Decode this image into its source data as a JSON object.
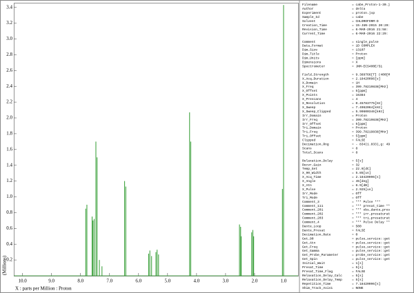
{
  "chart_data": {
    "type": "stem",
    "xlabel": "X : parts per Million : Proton",
    "ylabel": "(Millions)",
    "xlim": [
      10.3,
      0.5
    ],
    "xticks": [
      {
        "value": 10,
        "label": "10.0"
      },
      {
        "value": 9,
        "label": "9.0"
      },
      {
        "value": 8,
        "label": "8.0"
      },
      {
        "value": 7,
        "label": "7.0"
      },
      {
        "value": 6,
        "label": "6.0"
      },
      {
        "value": 5,
        "label": "5.0"
      },
      {
        "value": 4,
        "label": "4.0"
      },
      {
        "value": 3,
        "label": "3.0"
      },
      {
        "value": 2,
        "label": "2.0"
      },
      {
        "value": 1,
        "label": "1.0"
      }
    ],
    "ylim": [
      0,
      3.45
    ],
    "yticks": [
      0.2,
      0.4,
      0.6,
      0.8,
      {
        "value": 1,
        "label": "1.0"
      },
      1.2,
      1.4,
      1.6,
      1.8,
      {
        "value": 2,
        "label": "2.0"
      },
      2.2,
      2.4,
      2.6,
      2.8,
      {
        "value": 3,
        "label": "3.0"
      },
      3.2,
      3.4
    ],
    "color": "#2e9a2e",
    "x": [
      7.82,
      7.78,
      7.6,
      7.57,
      7.53,
      7.47,
      7.43,
      7.35,
      7.26,
      6.48,
      6.44,
      5.65,
      5.61,
      5.55,
      5.4,
      5.36,
      5.31,
      4.24,
      4.2,
      2.52,
      2.48,
      2.46,
      2.1,
      2.06,
      2.03,
      1.04,
      1.0
    ],
    "values": [
      0.85,
      0.9,
      0.75,
      0.7,
      0.72,
      1.7,
      1.5,
      0.2,
      0.12,
      1.2,
      1.13,
      0.28,
      0.32,
      0.25,
      0.3,
      0.33,
      0.27,
      2.07,
      1.7,
      0.65,
      0.62,
      0.5,
      0.55,
      0.58,
      0.5,
      1.1,
      3.43
    ]
  },
  "parameters": [
    [
      [
        "Filename",
        "= cabe_Proton-1-30.j"
      ],
      [
        "Author",
        "= delta"
      ],
      [
        "Experiment",
        "= proton.jxp"
      ],
      [
        "Sample_Id",
        "= cabe"
      ],
      [
        "Solvent",
        "= CHLOROFORM-D"
      ],
      [
        "Creation_Time",
        "= 15-JUN-2015 20:29:"
      ],
      [
        "Revision_Time",
        "= 6-MAR-2016 21:58:"
      ],
      [
        "Current_Time",
        "= 6-MAR-2016 22:29:"
      ]
    ],
    [
      [
        "Comment",
        "= single_pulse"
      ],
      [
        "Data_Format",
        "= 1D COMPLEX"
      ],
      [
        "Dim_Size",
        "= 13107"
      ],
      [
        "Dim_Title",
        "= Proton"
      ],
      [
        "Dim_Units",
        "= [ppm]"
      ],
      [
        "Dimensions",
        "= X"
      ],
      [
        "Spectrometer",
        "= JNM-ECS400E/S1"
      ]
    ],
    [
      [
        "Field_Strength",
        "= 9.389766[T] (400[M"
      ],
      [
        "X_Acq_Duration",
        "= 2.18420096[s]"
      ],
      [
        "X_Domain",
        "= 1H"
      ],
      [
        "X_Freq",
        "= 399.78219838[MHz]"
      ],
      [
        "X_Offset",
        "= 5[ppm]"
      ],
      [
        "X_Points",
        "= 16384"
      ],
      [
        "X_Prescans",
        "= 4"
      ],
      [
        "X_Resolution",
        "= 0.45783775[Hz]"
      ],
      [
        "X_Sweep",
        "= 7.4962064[kHz]"
      ],
      [
        "X_Sweep_Clipped",
        "= 5.99600346[kHz]"
      ],
      [
        "Irr_Domain",
        "= Proton"
      ],
      [
        "Irr_Freq",
        "= 399.78219838[MHz]"
      ],
      [
        "Irr_Offset",
        "= 5[ppm]"
      ],
      [
        "Tri_Domain",
        "= Proton"
      ],
      [
        "Tri_Freq",
        "= 399.78219838[MHz]"
      ],
      [
        "Tri_Offset",
        "= 5[ppm]"
      ],
      [
        "Clipped",
        "= FALSE"
      ],
      [
        "Decimation_Rng",
        "= - 834(1.833),g: 49"
      ],
      [
        "Scans",
        "= 8"
      ],
      [
        "Total_Scans",
        "= 8"
      ]
    ],
    [
      [
        "Relaxation_Delay",
        "= 5[s]"
      ],
      [
        "Recvr_Gain",
        "= 32"
      ],
      [
        "Temp_Get",
        "= 22.9[dC]"
      ],
      [
        "X_90_Width",
        "= 5.85[us]"
      ],
      [
        "X_Acq_Time",
        "= 2.18420096[s]"
      ],
      [
        "X_Angle",
        "= 45[deg]"
      ],
      [
        "X_Atn",
        "= 6.9[dB]"
      ],
      [
        "X_Pulse",
        "= 2.925[us]"
      ],
      [
        "Irr_Mode",
        "= Off"
      ],
      [
        "Tri_Mode",
        "= Off"
      ],
      [
        "Comment_3",
        "= *** Pulse ***"
      ],
      [
        "Comment_111",
        "= *** presat_time **"
      ],
      [
        "Comment_201",
        "= *** obs_dante_pres"
      ],
      [
        "Comment_202",
        "= *** irr_presaturat"
      ],
      [
        "Comment_203",
        "= *** tri_presaturat"
      ],
      [
        "Comment_4",
        "= *** Pulse Delay **"
      ],
      [
        "Dante_Loop",
        "= 500"
      ],
      [
        "Dante_Presat",
        "= FALSE"
      ],
      [
        "Decimation_Rate",
        "= 0"
      ],
      [
        "Get_90",
        "= pulse_service::get"
      ],
      [
        "Get_Atn",
        "= pulse_service::get"
      ],
      [
        "Get_Freq",
        "= pulse_service::get"
      ],
      [
        "Get_Gamma",
        "= pulse_service::get"
      ],
      [
        "Get_Probe_Parameter",
        "= probe_service::get"
      ],
      [
        "Get_Spin",
        "= pulse_service::get"
      ],
      [
        "Initial_Wait",
        "= 1[s]"
      ],
      [
        "Presat_Time",
        "= 5[s]"
      ],
      [
        "Presat_Time_Flag",
        "= FALSE"
      ],
      [
        "Relaxation_Delay_Calc",
        "= 5[s]"
      ],
      [
        "Relaxation_Delay_Temp",
        "= 5[s]"
      ],
      [
        "Repetition_Time",
        "= 7.18420096[s]"
      ],
      [
        "Shim_Track_Axis1",
        "= NONE"
      ]
    ]
  ]
}
